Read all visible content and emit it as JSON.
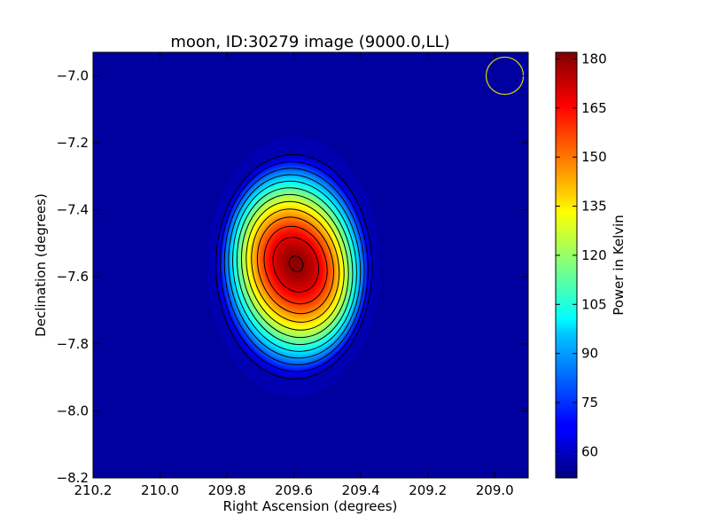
{
  "chart_data": {
    "type": "heatmap",
    "title": "moon, ID:30279 image (9000.0,LL)",
    "xlabel": "Right Ascension (degrees)",
    "ylabel": "Declination (degrees)",
    "xlim": [
      210.2,
      208.9
    ],
    "ylim": [
      -8.2,
      -6.93
    ],
    "x_ticks": [
      210.2,
      210.0,
      209.8,
      209.6,
      209.4,
      209.2,
      209.0
    ],
    "x_tick_labels": [
      "210.2",
      "210.0",
      "209.8",
      "209.6",
      "209.4",
      "209.2",
      "209.0"
    ],
    "y_ticks": [
      -7.0,
      -7.2,
      -7.4,
      -7.6,
      -7.8,
      -8.0,
      -8.2
    ],
    "y_tick_labels": [
      "−7.0",
      "−7.2",
      "−7.4",
      "−7.6",
      "−7.8",
      "−8.0",
      "−8.2"
    ],
    "colormap": "jet",
    "color_range": [
      52,
      182
    ],
    "background_level": 56,
    "source": {
      "peak_ra": 209.6,
      "peak_dec": -7.57,
      "peak_value": 181,
      "extent_ra": [
        209.82,
        209.34
      ],
      "extent_dec": [
        -7.21,
        -7.93
      ]
    },
    "contours": {
      "color": "#000000",
      "levels": [
        60,
        70,
        80,
        90,
        100,
        110,
        120,
        130,
        140,
        150,
        160,
        170,
        180
      ]
    },
    "beam_marker": {
      "ra": 208.97,
      "dec": -7.0,
      "color": "#d8d800"
    },
    "colorbar": {
      "label": "Power in Kelvin",
      "ticks": [
        60,
        75,
        90,
        105,
        120,
        135,
        150,
        165,
        180
      ],
      "tick_labels": [
        "60",
        "75",
        "90",
        "105",
        "120",
        "135",
        "150",
        "165",
        "180"
      ]
    },
    "grid": false
  }
}
